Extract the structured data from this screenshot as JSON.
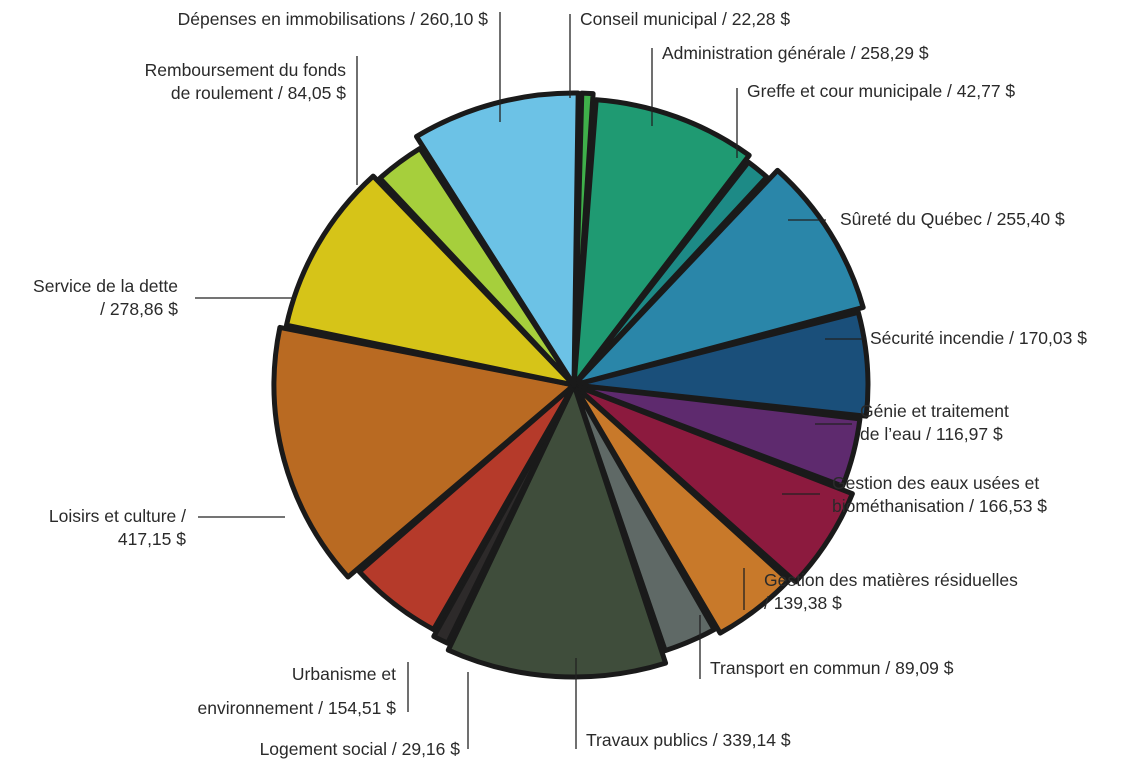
{
  "chart_data": {
    "type": "pie",
    "unit": "$",
    "slices": [
      {
        "label": "Conseil municipal",
        "value": 22.28,
        "display": "22,28 $",
        "color": "#3fb04a"
      },
      {
        "label": "Administration générale",
        "value": 258.29,
        "display": "258,29 $",
        "color": "#1f9a72"
      },
      {
        "label": "Greffe et cour municipale",
        "value": 42.77,
        "display": "42,77 $",
        "color": "#1d8a86"
      },
      {
        "label": "Sûreté du Québec",
        "value": 255.4,
        "display": "255,40 $",
        "color": "#2a86a9"
      },
      {
        "label": "Sécurité incendie",
        "value": 170.03,
        "display": "170,03 $",
        "color": "#1a4f7a"
      },
      {
        "label": "Génie et traitement de l'eau",
        "value": 116.97,
        "display": "116,97 $",
        "color": "#5e2a6e"
      },
      {
        "label": "Gestion des eaux usées et biométhanisation",
        "value": 166.53,
        "display": "166,53 $",
        "color": "#8c1a3e"
      },
      {
        "label": "Gestion des matières résiduelles",
        "value": 139.38,
        "display": "139,38 $",
        "color": "#c8792a"
      },
      {
        "label": "Transport en commun",
        "value": 89.09,
        "display": "89,09 $",
        "color": "#5f6966"
      },
      {
        "label": "Travaux publics",
        "value": 339.14,
        "display": "339,14 $",
        "color": "#3f4d3b"
      },
      {
        "label": "Logement social",
        "value": 29.16,
        "display": "29,16 $",
        "color": "#2d2a2a"
      },
      {
        "label": "Urbanisme et environnement",
        "value": 154.51,
        "display": "154,51 $",
        "color": "#b53a2a"
      },
      {
        "label": "Loisirs et culture",
        "value": 417.15,
        "display": "417,15 $",
        "color": "#b96a22"
      },
      {
        "label": "Service de la dette",
        "value": 278.86,
        "display": "278,86 $",
        "color": "#d6c418"
      },
      {
        "label": "Remboursement du fonds de roulement",
        "value": 84.05,
        "display": "84,05 $",
        "color": "#a6cf3c"
      },
      {
        "label": "Dépenses en immobilisations",
        "value": 260.1,
        "display": "260,10 $",
        "color": "#6cc2e6"
      }
    ]
  },
  "labels": {
    "conseil": "Conseil municipal / 22,28 $",
    "admin": "Administration générale / 258,29 $",
    "greffe": "Greffe et cour municipale / 42,77 $",
    "surete": "Sûreté du Québec / 255,40 $",
    "incendie": "Sécurité incendie / 170,03 $",
    "genie_1": "Génie et traitement",
    "genie_2": "de l’eau / 116,97 $",
    "eaux_1": "Gestion des eaux usées et",
    "eaux_2": "biométhanisation / 166,53 $",
    "matieres_1": "Gestion des matières résiduelles",
    "matieres_2": "/ 139,38 $",
    "transport": "Transport en commun / 89,09 $",
    "travaux": "Travaux publics / 339,14 $",
    "logement": "Logement social / 29,16 $",
    "urbanisme_1": "Urbanisme et",
    "urbanisme_2": "environnement / 154,51 $",
    "loisirs_1": "Loisirs et culture  /",
    "loisirs_2": "417,15 $",
    "dette_1": "Service de la dette",
    "dette_2": "/ 278,86 $",
    "rembours_1": "Remboursement du fonds",
    "rembours_2": "de roulement / 84,05 $",
    "depenses": "Dépenses en immobilisations / 260,10 $"
  }
}
